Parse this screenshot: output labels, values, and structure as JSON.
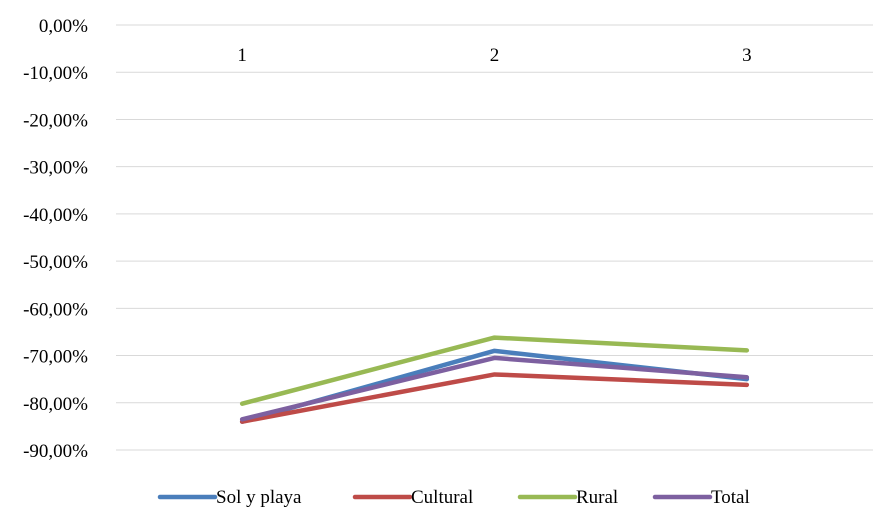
{
  "chart_data": {
    "type": "line",
    "title": "",
    "xlabel": "",
    "ylabel": "",
    "categories": [
      "1",
      "2",
      "3"
    ],
    "y_ticks": [
      "0,00%",
      "-10,00%",
      "-20,00%",
      "-30,00%",
      "-40,00%",
      "-50,00%",
      "-60,00%",
      "-70,00%",
      "-80,00%",
      "-90,00%"
    ],
    "ylim": [
      -90,
      0
    ],
    "grid": true,
    "legend_position": "bottom",
    "series": [
      {
        "name": "Sol y playa",
        "color": "#4a7ebb",
        "values": [
          -84.0,
          -69.0,
          -75.0
        ]
      },
      {
        "name": "Cultural",
        "color": "#be4b48",
        "values": [
          -84.0,
          -74.0,
          -76.2
        ]
      },
      {
        "name": "Rural",
        "color": "#98b954",
        "values": [
          -80.2,
          -66.2,
          -68.9
        ]
      },
      {
        "name": "Total",
        "color": "#7d60a0",
        "values": [
          -83.5,
          -70.5,
          -74.6
        ]
      }
    ]
  }
}
